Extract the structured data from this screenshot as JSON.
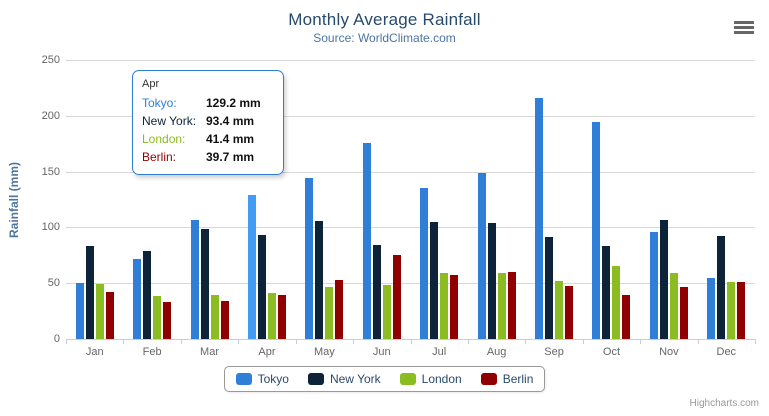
{
  "header": {
    "title": "Monthly Average Rainfall",
    "subtitle": "Source: WorldClimate.com"
  },
  "y_axis": {
    "title": "Rainfall (mm)"
  },
  "tooltip": {
    "header": "Apr",
    "border_color": "#2f7ed8",
    "rows": [
      {
        "label": "Tokyo:",
        "value": "129.2 mm",
        "color": "#2f7ed8"
      },
      {
        "label": "New York:",
        "value": "93.4 mm",
        "color": "#0d233a"
      },
      {
        "label": "London:",
        "value": "41.4 mm",
        "color": "#8bbc21"
      },
      {
        "label": "Berlin:",
        "value": "39.7 mm",
        "color": "#910000"
      }
    ]
  },
  "legend": {
    "items": [
      {
        "label": "Tokyo",
        "color": "#2f7ed8"
      },
      {
        "label": "New York",
        "color": "#0d233a"
      },
      {
        "label": "London",
        "color": "#8bbc21"
      },
      {
        "label": "Berlin",
        "color": "#910000"
      }
    ]
  },
  "credits": {
    "label": "Highcharts.com"
  },
  "chart_data": {
    "type": "bar",
    "bar_orientation": "vertical",
    "title": "Monthly Average Rainfall",
    "subtitle": "Source: WorldClimate.com",
    "categories": [
      "Jan",
      "Feb",
      "Mar",
      "Apr",
      "May",
      "Jun",
      "Jul",
      "Aug",
      "Sep",
      "Oct",
      "Nov",
      "Dec"
    ],
    "series": [
      {
        "name": "Tokyo",
        "color": "#2f7ed8",
        "values": [
          49.9,
          71.5,
          106.4,
          129.2,
          144.0,
          176.0,
          135.6,
          148.5,
          216.4,
          194.1,
          95.6,
          54.4
        ]
      },
      {
        "name": "New York",
        "color": "#0d233a",
        "values": [
          83.6,
          78.8,
          98.5,
          93.4,
          106.0,
          84.5,
          105.0,
          104.3,
          91.2,
          83.5,
          106.6,
          92.3
        ]
      },
      {
        "name": "London",
        "color": "#8bbc21",
        "values": [
          48.9,
          38.8,
          39.3,
          41.4,
          47.0,
          48.3,
          59.0,
          59.6,
          52.4,
          65.2,
          59.3,
          51.2
        ]
      },
      {
        "name": "Berlin",
        "color": "#910000",
        "values": [
          42.4,
          33.2,
          34.5,
          39.7,
          52.6,
          75.5,
          57.4,
          60.4,
          47.6,
          39.1,
          46.8,
          51.1
        ]
      }
    ],
    "xlabel": "",
    "ylabel": "Rainfall (mm)",
    "ylim": [
      0,
      250
    ],
    "yticks": [
      0,
      50,
      100,
      150,
      200,
      250
    ],
    "unit": "mm",
    "grid": true,
    "legend_position": "bottom",
    "highlight": {
      "series": "Tokyo",
      "category": "Apr"
    }
  }
}
